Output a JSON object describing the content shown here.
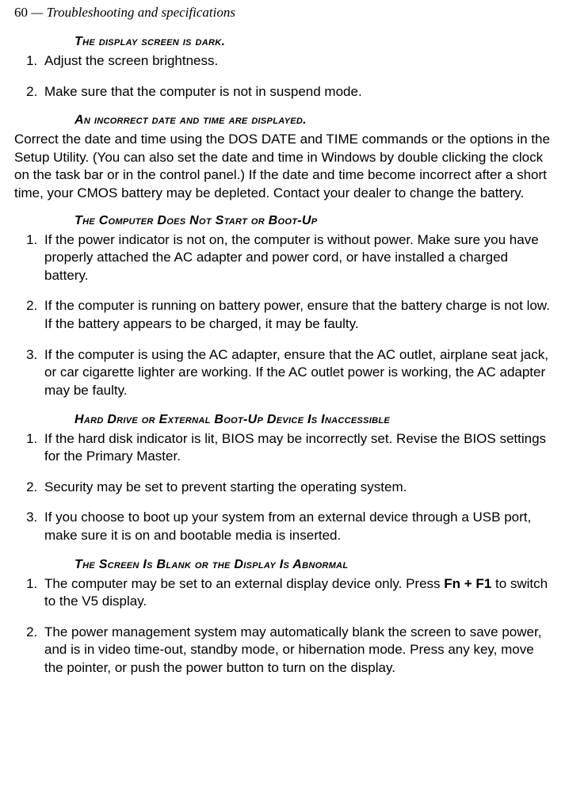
{
  "page": {
    "number": "60",
    "chapter": "—  Troubleshooting and specifications"
  },
  "sections": [
    {
      "title": "The display screen is dark.",
      "type": "list",
      "items": [
        "Adjust the screen brightness.",
        "Make sure that the computer is not in suspend mode."
      ]
    },
    {
      "title": "An incorrect date and time are displayed.",
      "type": "para",
      "text": "Correct the date and time using the DOS DATE and TIME commands or the options in the Setup Utility. (You can also set the date and time in Windows by double clicking the clock on the task bar or in the control panel.) If the date and time become incorrect after a short time, your CMOS battery may be depleted. Contact your dealer to change the battery."
    },
    {
      "title": "The Computer Does Not Start or Boot-Up",
      "type": "list",
      "items": [
        "If the power indicator is not on, the computer is without power. Make sure you have properly attached the AC adapter and power cord, or have installed a charged battery.",
        "If the computer is running on battery power, ensure that the battery charge is not low. If the battery appears to be charged, it may be faulty.",
        "If the computer is using the AC adapter, ensure that the AC outlet, airplane seat jack, or car cigarette lighter are working. If the AC outlet power is working, the AC adapter may be faulty."
      ]
    },
    {
      "title": "Hard Drive or External Boot-Up Device Is Inaccessible",
      "type": "list",
      "items": [
        "If the hard disk indicator is lit, BIOS may be incorrectly set. Revise the BIOS settings for the Primary Master.",
        "Security may be set to prevent starting the operating system.",
        "If you choose to boot up your system from an external device through a USB port, make sure it is on and bootable media is inserted."
      ]
    },
    {
      "title": "The Screen Is Blank or the Display Is Abnormal",
      "type": "list",
      "items": [
        "The computer may be set to an external display device only. Press <b>Fn + F1</b> to switch to the V5 display.",
        "The power management system may automatically blank the screen to save power, and is in video time-out, standby mode, or hibernation mode. Press any key, move the pointer, or push the power button to turn on the display."
      ]
    }
  ]
}
